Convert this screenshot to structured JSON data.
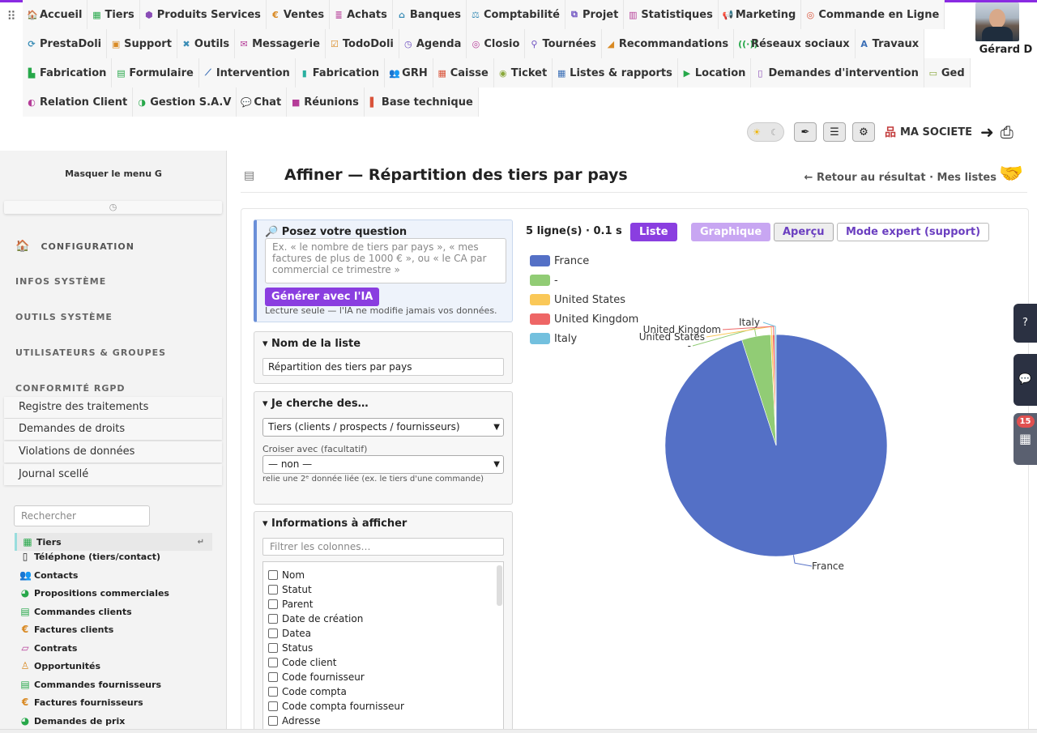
{
  "topmenu": {
    "rows": [
      [
        {
          "label": "Accueil",
          "icon": "home-icon",
          "glyph": "🏠",
          "color": "#3b6fb6"
        },
        {
          "label": "Tiers",
          "icon": "building-icon",
          "glyph": "▦",
          "color": "#27a84a"
        },
        {
          "label": "Produits Services",
          "icon": "cubes-icon",
          "glyph": "⬢",
          "color": "#8a4db6"
        },
        {
          "label": "Ventes",
          "icon": "euro-icon",
          "glyph": "€",
          "color": "#d98a24"
        },
        {
          "label": "Achats",
          "icon": "stack-icon",
          "glyph": "≣",
          "color": "#b53c98"
        },
        {
          "label": "Banques",
          "icon": "bank-icon",
          "glyph": "⌂",
          "color": "#3b8db6"
        },
        {
          "label": "Comptabilité",
          "icon": "scale-icon",
          "glyph": "⚖",
          "color": "#3b8db6"
        },
        {
          "label": "Projet",
          "icon": "sitemap-icon",
          "glyph": "⧉",
          "color": "#6c4fc0"
        },
        {
          "label": "Statistiques",
          "icon": "chart-icon",
          "glyph": "▥",
          "color": "#b53c98"
        },
        {
          "label": "Marketing",
          "icon": "bullhorn-icon",
          "glyph": "📢",
          "color": "#b53c98"
        },
        {
          "label": "Commande en Ligne",
          "icon": "order-icon",
          "glyph": "◎",
          "color": "#d9533a"
        }
      ],
      [
        {
          "label": "PrestaDoli",
          "icon": "sync-icon",
          "glyph": "⟳",
          "color": "#3b8db6"
        },
        {
          "label": "Support",
          "icon": "support-icon",
          "glyph": "▣",
          "color": "#d98a24"
        },
        {
          "label": "Outils",
          "icon": "tools-icon",
          "glyph": "✖",
          "color": "#3b8db6"
        },
        {
          "label": "Messagerie",
          "icon": "mail-icon",
          "glyph": "✉",
          "color": "#b53c98"
        },
        {
          "label": "TodoDoli",
          "icon": "todo-icon",
          "glyph": "☑",
          "color": "#d98a24"
        },
        {
          "label": "Agenda",
          "icon": "clock-icon",
          "glyph": "◷",
          "color": "#6c4fc0"
        },
        {
          "label": "Closio",
          "icon": "target-icon",
          "glyph": "◎",
          "color": "#b53c98"
        },
        {
          "label": "Tournées",
          "icon": "route-icon",
          "glyph": "⚲",
          "color": "#6c4fc0"
        },
        {
          "label": "Recommandations",
          "icon": "megaphone-icon",
          "glyph": "◢",
          "color": "#d98a24"
        },
        {
          "label": "Réseaux sociaux",
          "icon": "broadcast-icon",
          "glyph": "((·))",
          "color": "#27a84a"
        },
        {
          "label": "Travaux",
          "icon": "road-icon",
          "glyph": "A",
          "color": "#3b6fb6"
        }
      ],
      [
        {
          "label": "Fabrication",
          "icon": "factory-icon",
          "glyph": "▙",
          "color": "#27a84a"
        },
        {
          "label": "Formulaire",
          "icon": "form-icon",
          "glyph": "▤",
          "color": "#27a84a"
        },
        {
          "label": "Intervention",
          "icon": "wrench-icon",
          "glyph": "⟋",
          "color": "#3b6fb6"
        },
        {
          "label": "Fabrication",
          "icon": "cylinder-icon",
          "glyph": "▮",
          "color": "#2ab0a0"
        },
        {
          "label": "GRH",
          "icon": "users-icon",
          "glyph": "👥",
          "color": "#6c4fc0"
        },
        {
          "label": "Caisse",
          "icon": "cashregister-icon",
          "glyph": "▦",
          "color": "#d9533a"
        },
        {
          "label": "Ticket",
          "icon": "lifering-icon",
          "glyph": "◉",
          "color": "#8aa83b"
        },
        {
          "label": "Listes & rapports",
          "icon": "table-icon",
          "glyph": "▦",
          "color": "#3b6fb6"
        },
        {
          "label": "Location",
          "icon": "truck-icon",
          "glyph": "▶",
          "color": "#27a84a"
        },
        {
          "label": "Demandes d'intervention",
          "icon": "file-icon",
          "glyph": "▯",
          "color": "#8a4db6"
        },
        {
          "label": "Ged",
          "icon": "folder-icon",
          "glyph": "▭",
          "color": "#8aa83b"
        }
      ],
      [
        {
          "label": "Relation Client",
          "icon": "handshake-icon",
          "glyph": "◐",
          "color": "#b53c98"
        },
        {
          "label": "Gestion S.A.V",
          "icon": "handshake2-icon",
          "glyph": "◑",
          "color": "#27a84a"
        },
        {
          "label": "Chat",
          "icon": "chat-icon",
          "glyph": "💬",
          "color": "#6c4fc0"
        },
        {
          "label": "Réunions",
          "icon": "video-icon",
          "glyph": "■",
          "color": "#b53c98"
        },
        {
          "label": "Base technique",
          "icon": "book-icon",
          "glyph": "▌",
          "color": "#d9533a"
        }
      ]
    ]
  },
  "user": {
    "name": "Gérard D"
  },
  "company": {
    "name": "MA SOCIETE"
  },
  "leftmenu": {
    "hide_label": "Masquer le menu G",
    "sections": [
      {
        "label": "CONFIGURATION"
      },
      {
        "label": "INFOS SYSTÈME"
      },
      {
        "label": "OUTILS SYSTÈME"
      },
      {
        "label": "UTILISATEURS & GROUPES"
      },
      {
        "label": "CONFORMITÉ RGPD"
      }
    ],
    "rgpd_items": [
      "Registre des traitements",
      "Demandes de droits",
      "Violations de données",
      "Journal scellé"
    ],
    "search_placeholder": "Rechercher",
    "items": [
      {
        "label": "Tiers",
        "icon": "building-icon",
        "glyph": "▦",
        "color": "#27a84a"
      },
      {
        "label": "Téléphone (tiers/contact)",
        "icon": "phone-icon",
        "glyph": "▯",
        "color": "#222"
      },
      {
        "label": "Contacts",
        "icon": "contacts-icon",
        "glyph": "👥",
        "color": "#27a84a"
      },
      {
        "label": "Propositions commerciales",
        "icon": "proposal-icon",
        "glyph": "◕",
        "color": "#27a84a"
      },
      {
        "label": "Commandes clients",
        "icon": "order-icon",
        "glyph": "▤",
        "color": "#27a84a"
      },
      {
        "label": "Factures clients",
        "icon": "euro-icon",
        "glyph": "€",
        "color": "#d98a24"
      },
      {
        "label": "Contrats",
        "icon": "contract-icon",
        "glyph": "▱",
        "color": "#b53c98"
      },
      {
        "label": "Opportunités",
        "icon": "person-icon",
        "glyph": "♙",
        "color": "#d98a24"
      },
      {
        "label": "Commandes fournisseurs",
        "icon": "supplier-order-icon",
        "glyph": "▤",
        "color": "#27a84a"
      },
      {
        "label": "Factures fournisseurs",
        "icon": "euro-icon",
        "glyph": "€",
        "color": "#d98a24"
      },
      {
        "label": "Demandes de prix",
        "icon": "price-request-icon",
        "glyph": "◕",
        "color": "#27a84a"
      }
    ]
  },
  "header": {
    "title": "Affiner — Répartition des tiers par pays",
    "back_links": "← Retour au résultat · Mes listes"
  },
  "ask": {
    "title": "🔎 Posez votre question",
    "placeholder": "Ex. « le nombre de tiers par pays », « mes factures de plus de 1000 € », ou « le CA par commercial ce trimestre »",
    "generate_label": "Générer avec l'IA",
    "note": "Lecture seule — l'IA ne modifie jamais vos données."
  },
  "list_name": {
    "heading": "▾ Nom de la liste",
    "value": "Répartition des tiers par pays"
  },
  "search_for": {
    "heading": "▾ Je cherche des…",
    "selected": "Tiers (clients / prospects / fournisseurs)",
    "cross_label": "Croiser avec (facultatif)",
    "cross_selected": "— non —",
    "cross_note": "relie une 2ᵉ donnée liée (ex. le tiers d'une commande)"
  },
  "info": {
    "heading": "▾ Informations à afficher",
    "filter_placeholder": "Filtrer les colonnes…",
    "columns": [
      "Nom",
      "Statut",
      "Parent",
      "Date de création",
      "Datea",
      "Status",
      "Code client",
      "Code fournisseur",
      "Code compta",
      "Code compta fournisseur",
      "Adresse"
    ]
  },
  "results": {
    "stats": "5 ligne(s) · 0.1 s"
  },
  "view_buttons": {
    "liste": "Liste",
    "graphique": "Graphique",
    "apercu": "Aperçu",
    "expert": "Mode expert (support)"
  },
  "chart_data": {
    "type": "pie",
    "categories": [
      "France",
      "-",
      "United States",
      "United Kingdom",
      "Italy"
    ],
    "values": [
      95,
      4.2,
      0.3,
      0.3,
      0.2
    ],
    "colors": [
      "#5470c6",
      "#91cc75",
      "#fac858",
      "#ee6666",
      "#73c0de"
    ],
    "legend": "top-left"
  },
  "side_badge": {
    "count": "15"
  }
}
